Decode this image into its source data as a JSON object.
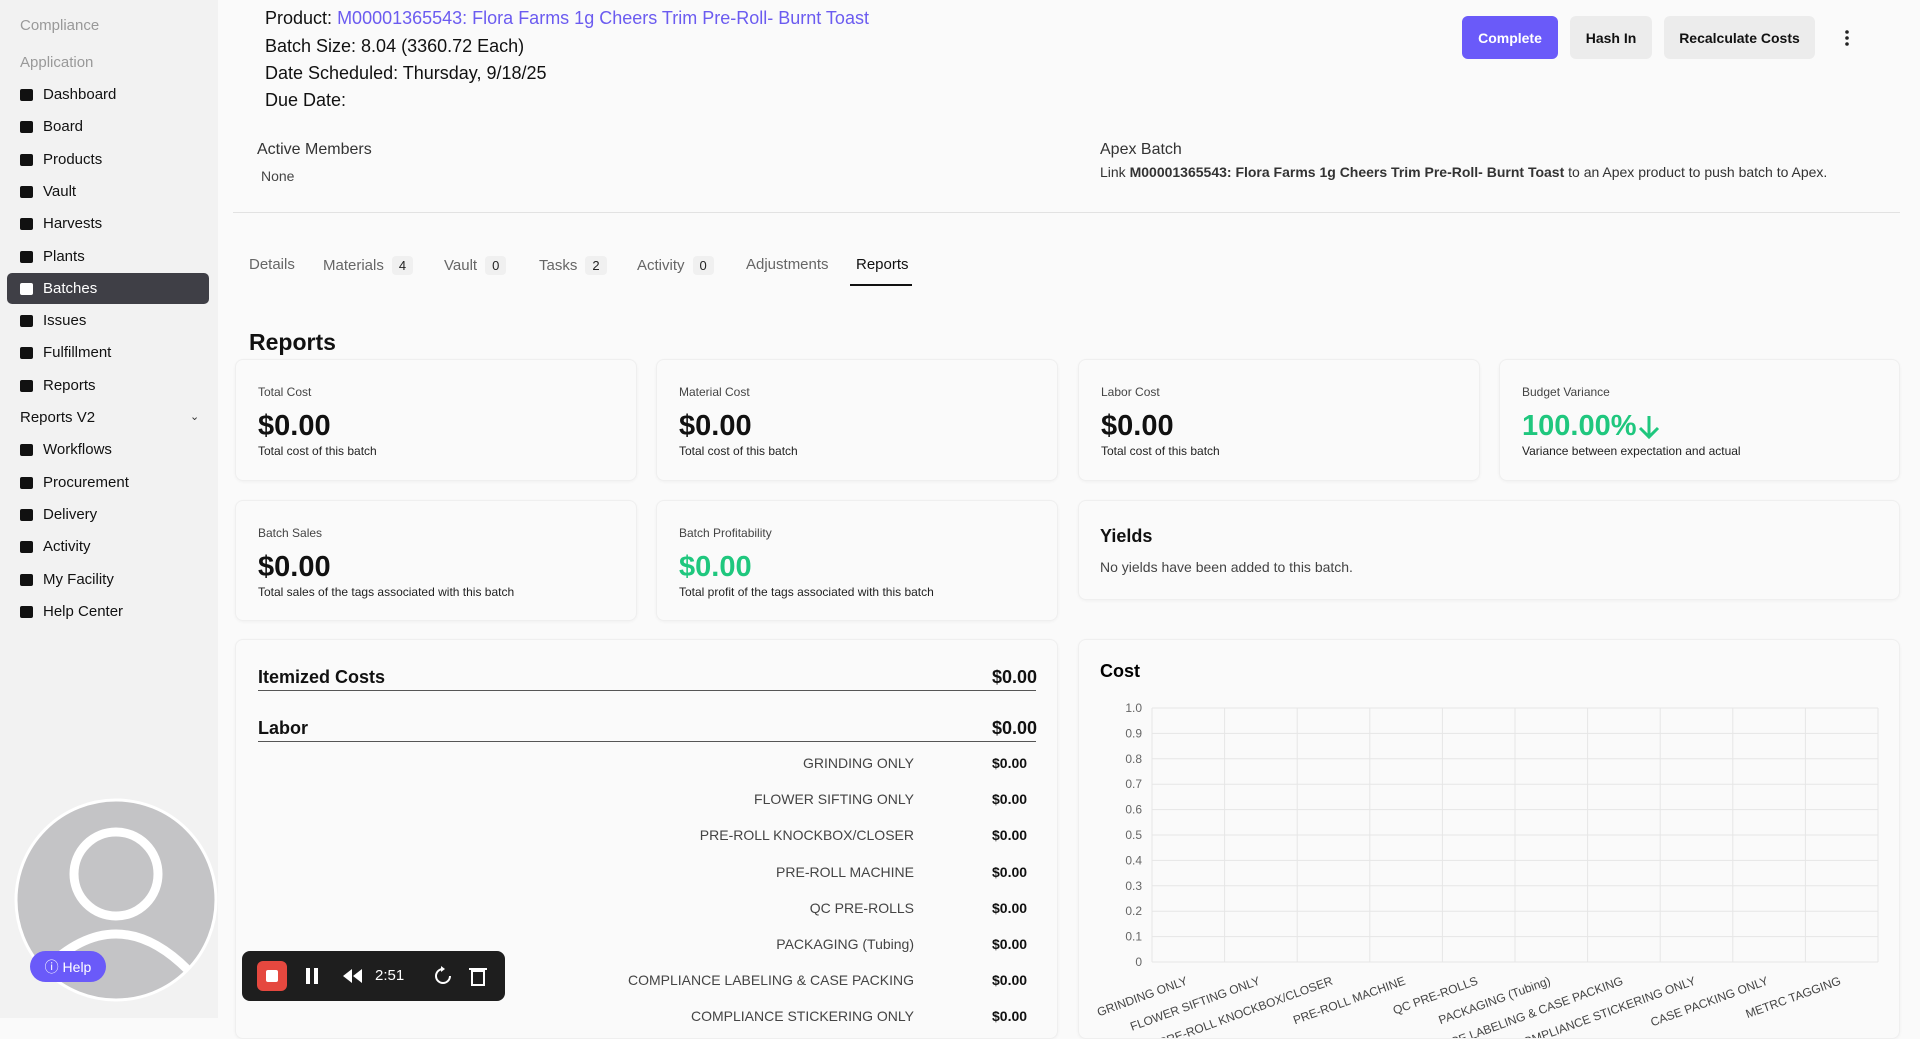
{
  "sidebar": {
    "headings": [
      "Compliance",
      "Application"
    ],
    "active": "Batches",
    "items": [
      {
        "label": "Dashboard"
      },
      {
        "label": "Board"
      },
      {
        "label": "Products"
      },
      {
        "label": "Vault"
      },
      {
        "label": "Harvests"
      },
      {
        "label": "Plants"
      },
      {
        "label": "Batches"
      },
      {
        "label": "Issues"
      },
      {
        "label": "Fulfillment"
      },
      {
        "label": "Reports"
      },
      {
        "label": "Reports V2",
        "expandable": true
      },
      {
        "label": "Workflows"
      },
      {
        "label": "Procurement"
      },
      {
        "label": "Delivery"
      },
      {
        "label": "Activity"
      },
      {
        "label": "My Facility"
      },
      {
        "label": "Help Center"
      }
    ]
  },
  "header": {
    "product_label": "Product:",
    "product_link": "M00001365543: Flora Farms 1g Cheers Trim Pre-Roll- Burnt Toast",
    "batch_size": "Batch Size: 8.04 (3360.72 Each)",
    "date_scheduled": "Date Scheduled: Thursday, 9/18/25",
    "due_date": "Due Date:"
  },
  "actions": [
    "Complete",
    "Hash In",
    "Recalculate Costs"
  ],
  "members": {
    "title": "Active Members",
    "value": "None"
  },
  "apex": {
    "title": "Apex Batch",
    "text_before": "Link",
    "link": "M00001365543: Flora Farms 1g Cheers Trim Pre-Roll- Burnt Toast",
    "text_after": "to an Apex product to push batch to Apex."
  },
  "active_tab": "Reports",
  "tabs": [
    {
      "label": "Details"
    },
    {
      "label": "Materials",
      "count": 4
    },
    {
      "label": "Vault",
      "count": 0
    },
    {
      "label": "Tasks",
      "count": 2
    },
    {
      "label": "Activity",
      "count": 0
    },
    {
      "label": "Adjustments"
    },
    {
      "label": "Reports"
    }
  ],
  "reports": {
    "title": "Reports",
    "cards": [
      {
        "label": "Total Cost",
        "value": "$0.00",
        "note": "Total cost of this batch"
      },
      {
        "label": "Material Cost",
        "value": "$0.00",
        "note": "Total cost of this batch"
      },
      {
        "label": "Labor Cost",
        "value": "$0.00",
        "note": "Total cost of this batch"
      },
      {
        "label": "Budget Variance",
        "value": "100.00%",
        "note": "Variance between expectation and actual",
        "tone": "positive",
        "trend": "down"
      },
      {
        "label": "Batch Sales",
        "value": "$0.00",
        "note": "Total sales of the tags associated with this batch"
      },
      {
        "label": "Batch Profitability",
        "value": "$0.00",
        "note": "Total profit of the tags associated with this batch",
        "tone": "positive"
      }
    ],
    "yields": {
      "title": "Yields",
      "text": "No yields have been added to this batch."
    },
    "itemized": {
      "title": "Itemized Costs",
      "total": "$0.00",
      "section": {
        "title": "Labor",
        "total": "$0.00",
        "rows": [
          {
            "name": "GRINDING ONLY",
            "value": "$0.00"
          },
          {
            "name": "FLOWER SIFTING ONLY",
            "value": "$0.00"
          },
          {
            "name": "PRE-ROLL KNOCKBOX/CLOSER",
            "value": "$0.00"
          },
          {
            "name": "PRE-ROLL MACHINE",
            "value": "$0.00"
          },
          {
            "name": "QC PRE-ROLLS",
            "value": "$0.00"
          },
          {
            "name": "PACKAGING (Tubing)",
            "value": "$0.00"
          },
          {
            "name": "COMPLIANCE LABELING & CASE PACKING",
            "value": "$0.00"
          },
          {
            "name": "COMPLIANCE STICKERING ONLY",
            "value": "$0.00"
          }
        ]
      }
    }
  },
  "chart_data": {
    "type": "bar",
    "title": "Cost",
    "categories": [
      "GRINDING ONLY",
      "FLOWER SIFTING ONLY",
      "PRE-ROLL KNOCKBOX/CLOSER",
      "PRE-ROLL MACHINE",
      "QC PRE-ROLLS",
      "PACKAGING (Tubing)",
      "COMPLIANCE LABELING & CASE PACKING",
      "COMPLIANCE STICKERING ONLY",
      "CASE PACKING ONLY",
      "METRC TAGGING"
    ],
    "values": [
      0,
      0,
      0,
      0,
      0,
      0,
      0,
      0,
      0,
      0
    ],
    "color": "#6a5af9",
    "ylim": [
      0,
      1
    ],
    "yticks": [
      0,
      0.1,
      0.2,
      0.3,
      0.4,
      0.5,
      0.6,
      0.7,
      0.8,
      0.9,
      {
        "value": 1,
        "label": "1.0"
      }
    ],
    "grid": true
  },
  "recorder": {
    "time": "2:51"
  },
  "help": "Help"
}
